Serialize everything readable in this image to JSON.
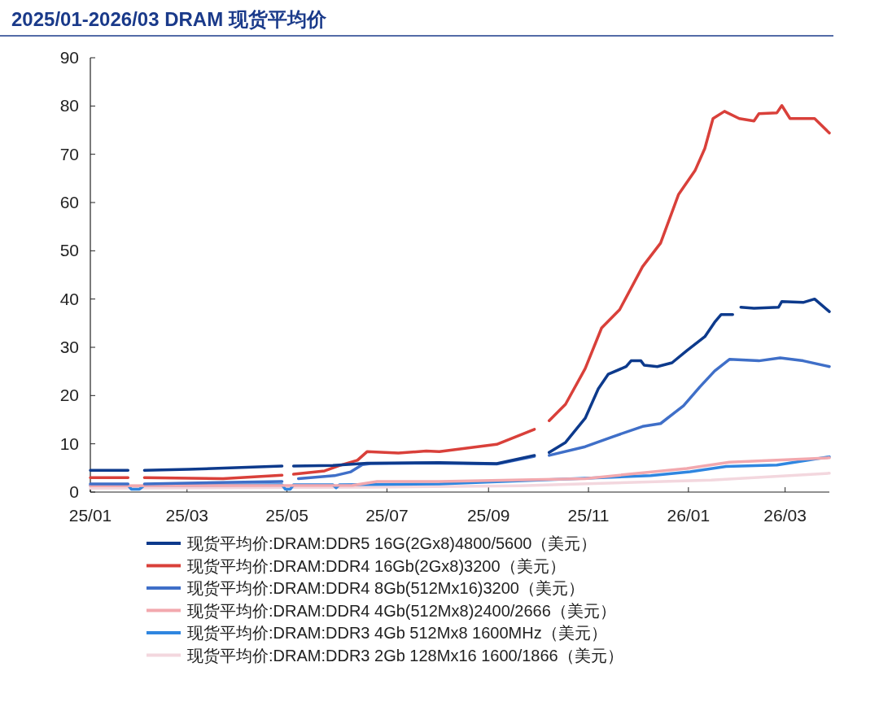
{
  "chart_data": {
    "type": "line",
    "title": "2025/01-2026/03 DRAM 现货平均价",
    "xlim": [
      "2025-01-01",
      "2026-03-28"
    ],
    "xticks": [
      {
        "value": "2025-01-01",
        "label": "25/01"
      },
      {
        "value": "2025-03-01",
        "label": "25/03"
      },
      {
        "value": "2025-05-01",
        "label": "25/05"
      },
      {
        "value": "2025-07-01",
        "label": "25/07"
      },
      {
        "value": "2025-09-01",
        "label": "25/09"
      },
      {
        "value": "2025-11-01",
        "label": "25/11"
      },
      {
        "value": "2026-01-01",
        "label": "26/01"
      },
      {
        "value": "2026-03-01",
        "label": "26/03"
      }
    ],
    "ylim": [
      0,
      90
    ],
    "yticks": [
      0,
      10,
      20,
      30,
      40,
      50,
      60,
      70,
      80,
      90
    ],
    "grid": false,
    "legend": "bottom",
    "marker": "none",
    "line_style": "solid",
    "series": [
      {
        "name": "现货平均价:DRAM:DDR5 16G(2Gx8)4800/5600（美元）",
        "color": "#0d3a8c",
        "x": [
          "2025-01-01",
          "2025-01-24",
          "2025-01-29",
          "2025-02-03",
          "2025-03-02",
          "2025-04-28",
          "2025-05-01",
          "2025-05-05",
          "2025-05-29",
          "2025-06-19",
          "2025-08-02",
          "2025-09-06",
          "2025-09-29",
          "2025-10-03",
          "2025-10-08",
          "2025-10-18",
          "2025-10-30",
          "2025-11-07",
          "2025-11-13",
          "2025-11-24",
          "2025-11-27",
          "2025-12-03",
          "2025-12-05",
          "2025-12-13",
          "2025-12-22",
          "2025-12-31",
          "2026-01-11",
          "2026-01-17",
          "2026-01-21",
          "2026-01-28",
          "2026-01-30",
          "2026-02-02",
          "2026-02-10",
          "2026-02-25",
          "2026-02-27",
          "2026-03-12",
          "2026-03-19",
          "2026-03-28"
        ],
        "values": [
          4.5,
          4.5,
          null,
          4.5,
          4.7,
          5.4,
          null,
          5.4,
          5.5,
          6.0,
          6.1,
          5.9,
          7.6,
          null,
          8.2,
          10.3,
          15.3,
          21.4,
          24.4,
          26.0,
          27.2,
          27.2,
          26.3,
          26.0,
          26.8,
          29.3,
          32.2,
          35.2,
          36.8,
          36.8,
          null,
          38.3,
          38.1,
          38.3,
          39.5,
          39.3,
          40.0,
          37.4
        ]
      },
      {
        "name": "现货平均价:DRAM:DDR4 16Gb(2Gx8)3200（美元）",
        "color": "#d9403a",
        "x": [
          "2025-01-01",
          "2025-01-24",
          "2025-01-29",
          "2025-02-03",
          "2025-03-23",
          "2025-04-28",
          "2025-05-01",
          "2025-05-05",
          "2025-05-24",
          "2025-06-02",
          "2025-06-13",
          "2025-06-19",
          "2025-07-08",
          "2025-07-25",
          "2025-08-02",
          "2025-09-06",
          "2025-09-29",
          "2025-10-03",
          "2025-10-08",
          "2025-10-18",
          "2025-10-30",
          "2025-11-09",
          "2025-11-20",
          "2025-12-04",
          "2025-12-15",
          "2025-12-26",
          "2026-01-05",
          "2026-01-11",
          "2026-01-16",
          "2026-01-23",
          "2026-02-01",
          "2026-02-10",
          "2026-02-13",
          "2026-02-24",
          "2026-02-27",
          "2026-03-04",
          "2026-03-19",
          "2026-03-28"
        ],
        "values": [
          3.0,
          3.0,
          null,
          3.0,
          2.8,
          3.5,
          null,
          3.7,
          4.4,
          5.5,
          6.6,
          8.4,
          8.1,
          8.5,
          8.4,
          9.9,
          13.0,
          null,
          14.8,
          18.2,
          25.6,
          34.0,
          37.8,
          46.7,
          51.6,
          61.7,
          66.6,
          71.2,
          77.4,
          78.9,
          77.4,
          76.9,
          78.4,
          78.6,
          80.1,
          77.4,
          77.4,
          74.4
        ]
      },
      {
        "name": "现货平均价:DRAM:DDR4 8Gb(512Mx16)3200（美元）",
        "color": "#3f6fc8",
        "x": [
          "2025-01-01",
          "2025-01-24",
          "2025-01-29",
          "2025-02-03",
          "2025-04-28",
          "2025-05-01",
          "2025-05-08",
          "2025-05-30",
          "2025-06-09",
          "2025-06-16",
          "2025-06-21",
          "2025-08-02",
          "2025-09-06",
          "2025-09-29",
          "2025-10-03",
          "2025-10-08",
          "2025-10-30",
          "2025-11-16",
          "2025-12-04",
          "2025-12-15",
          "2025-12-29",
          "2026-01-08",
          "2026-01-17",
          "2026-01-26",
          "2026-02-13",
          "2026-02-26",
          "2026-03-12",
          "2026-03-28"
        ],
        "values": [
          1.7,
          1.7,
          null,
          1.7,
          2.2,
          null,
          2.8,
          3.4,
          4.2,
          5.7,
          5.9,
          6.0,
          5.8,
          7.4,
          null,
          7.6,
          9.4,
          11.5,
          13.6,
          14.2,
          17.9,
          21.8,
          25.1,
          27.5,
          27.2,
          27.8,
          27.2,
          26.0
        ]
      },
      {
        "name": "现货平均价:DRAM:DDR4 4Gb(512Mx8)2400/2666（美元）",
        "color": "#f2a8ae",
        "x": [
          "2025-01-01",
          "2025-06-10",
          "2025-06-25",
          "2025-08-02",
          "2025-10-30",
          "2025-12-31",
          "2026-01-26",
          "2026-03-28"
        ],
        "values": [
          1.3,
          1.4,
          2.2,
          2.2,
          2.8,
          4.9,
          6.2,
          7.1
        ]
      },
      {
        "name": "现货平均价:DRAM:DDR3 4Gb 512Mx8 1600MHz（美元）",
        "color": "#2f86e0",
        "x": [
          "2025-01-01",
          "2025-01-24",
          "2025-01-26",
          "2025-01-31",
          "2025-02-03",
          "2025-04-28",
          "2025-04-30",
          "2025-05-03",
          "2025-05-05",
          "2025-05-29",
          "2025-05-31",
          "2025-06-02",
          "2025-08-02",
          "2025-10-24",
          "2025-12-09",
          "2026-01-02",
          "2026-01-24",
          "2026-02-24",
          "2026-03-28"
        ],
        "values": [
          1.4,
          1.4,
          0.6,
          0.6,
          1.4,
          1.5,
          0.6,
          0.6,
          1.5,
          1.5,
          0.9,
          1.5,
          1.7,
          2.8,
          3.4,
          4.2,
          5.3,
          5.6,
          7.3
        ]
      },
      {
        "name": "现货平均价:DRAM:DDR3 2Gb 128Mx16 1600/1866（美元）",
        "color": "#f3d7de",
        "x": [
          "2025-01-01",
          "2025-06-20",
          "2025-09-20",
          "2026-01-15",
          "2026-03-28"
        ],
        "values": [
          0.8,
          1.0,
          1.3,
          2.5,
          3.9
        ]
      }
    ]
  }
}
